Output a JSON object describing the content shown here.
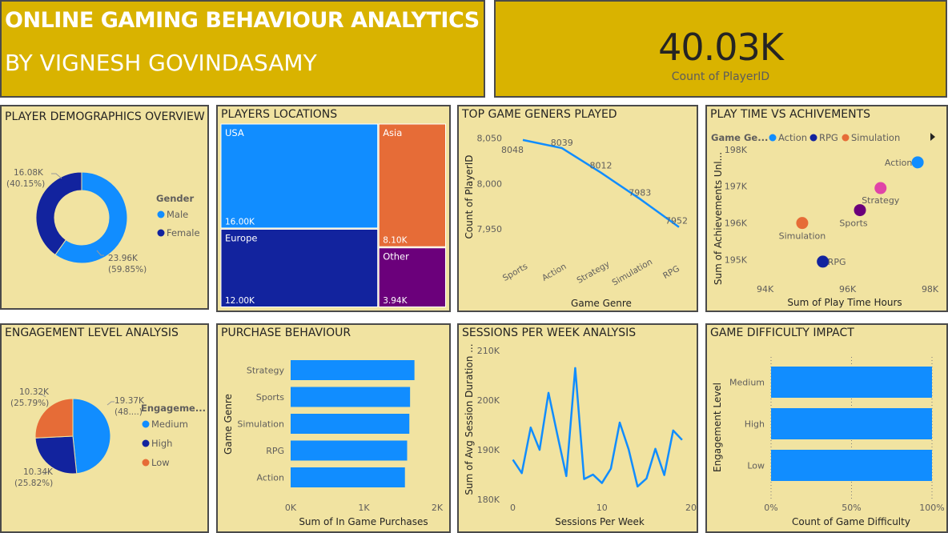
{
  "header": {
    "title": "ONLINE GAMING BEHAVIOUR ANALYTICS",
    "author": "BY VIGNESH GOVINDASAMY"
  },
  "kpi": {
    "value": "40.03K",
    "label": "Count of PlayerID"
  },
  "panels": {
    "demographics": "PLAYER DEMOGRAPHICS OVERVIEW",
    "locations": "PLAYERS LOCATIONS",
    "genres": "TOP GAME GENERS PLAYED",
    "playtime": "PLAY TIME VS ACHIVEMENTS",
    "engagement": "ENGAGEMENT LEVEL ANALYSIS",
    "purchase": "PURCHASE BEHAVIOUR",
    "sessions": "SESSIONS PER WEEK ANALYSIS",
    "difficulty": "GAME DIFFICULTY IMPACT"
  },
  "colors": {
    "light_blue": "#118dff",
    "dark_blue": "#12239e",
    "orange": "#e66c37",
    "purple": "#6b007b",
    "pink": "#e044a7",
    "plum": "#744ec2",
    "panel_bg": "#f1e3a1",
    "banner_bg": "#d9b300"
  },
  "chart_data": [
    {
      "id": "demographics",
      "type": "donut",
      "legend_title": "Gender",
      "legend": [
        "Male",
        "Female"
      ],
      "slices": [
        {
          "name": "Male",
          "value": 23.96,
          "label": "23.96K",
          "pct": "(59.85%)",
          "color": "#118dff"
        },
        {
          "name": "Female",
          "value": 16.08,
          "label": "16.08K",
          "pct": "(40.15%)",
          "color": "#12239e"
        }
      ]
    },
    {
      "id": "locations",
      "type": "treemap",
      "items": [
        {
          "name": "USA",
          "value": 16.0,
          "label": "16.00K",
          "color": "#118dff"
        },
        {
          "name": "Europe",
          "value": 12.0,
          "label": "12.00K",
          "color": "#12239e"
        },
        {
          "name": "Asia",
          "value": 8.1,
          "label": "8.10K",
          "color": "#e66c37"
        },
        {
          "name": "Other",
          "value": 3.94,
          "label": "3.94K",
          "color": "#6b007b"
        }
      ]
    },
    {
      "id": "genres",
      "type": "line",
      "categories": [
        "Sports",
        "Action",
        "Strategy",
        "Simulation",
        "RPG"
      ],
      "values": [
        8048,
        8039,
        8012,
        7983,
        7952
      ],
      "ylim": [
        7935,
        8062
      ],
      "yticks": [
        7950,
        8000,
        8050
      ],
      "ytick_labels": [
        "7,950",
        "8,000",
        "8,050"
      ],
      "xlabel": "Game Genre",
      "ylabel": "Count of PlayerID"
    },
    {
      "id": "playtime",
      "type": "scatter",
      "legend_title": "Game Ge...",
      "legend": [
        {
          "name": "Action",
          "color": "#118dff"
        },
        {
          "name": "RPG",
          "color": "#12239e"
        },
        {
          "name": "Simulation",
          "color": "#e66c37"
        }
      ],
      "points": [
        {
          "name": "Action",
          "x": 97.7,
          "y": 197.65,
          "color": "#118dff"
        },
        {
          "name": "Strategy",
          "x": 96.8,
          "y": 196.95,
          "color": "#e044a7"
        },
        {
          "name": "Sports",
          "x": 96.3,
          "y": 196.35,
          "color": "#6b007b"
        },
        {
          "name": "Simulation",
          "x": 94.9,
          "y": 196.0,
          "color": "#e66c37"
        },
        {
          "name": "RPG",
          "x": 95.4,
          "y": 194.95,
          "color": "#12239e"
        }
      ],
      "xlim": [
        93.6,
        98.3
      ],
      "ylim": [
        194.6,
        198.3
      ],
      "xticks": [
        94,
        96,
        98
      ],
      "xtick_labels": [
        "94K",
        "96K",
        "98K"
      ],
      "yticks": [
        195,
        196,
        197,
        198
      ],
      "ytick_labels": [
        "195K",
        "196K",
        "197K",
        "198K"
      ],
      "xlabel": "Sum of Play Time Hours",
      "ylabel": "Sum of Achievements Unl..."
    },
    {
      "id": "engagement",
      "type": "pie",
      "legend_title": "Engageme...",
      "legend": [
        "Medium",
        "High",
        "Low"
      ],
      "slices": [
        {
          "name": "Medium",
          "value": 19.37,
          "label": "19.37K",
          "pct": "(48....)",
          "color": "#118dff"
        },
        {
          "name": "High",
          "value": 10.34,
          "label": "10.34K",
          "pct": "(25.82%)",
          "color": "#12239e"
        },
        {
          "name": "Low",
          "value": 10.32,
          "label": "10.32K",
          "pct": "(25.79%)",
          "color": "#e66c37"
        }
      ]
    },
    {
      "id": "purchase",
      "type": "bar",
      "orientation": "horizontal",
      "categories": [
        "Strategy",
        "Sports",
        "Simulation",
        "RPG",
        "Action"
      ],
      "values": [
        1690,
        1630,
        1620,
        1590,
        1560
      ],
      "xlim": [
        0,
        2000
      ],
      "xticks": [
        0,
        1000,
        2000
      ],
      "xtick_labels": [
        "0K",
        "1K",
        "2K"
      ],
      "xlabel": "Sum of In Game Purchases",
      "ylabel": "Game Genre"
    },
    {
      "id": "sessions",
      "type": "line",
      "x": [
        0,
        1,
        2,
        3,
        4,
        5,
        6,
        7,
        8,
        9,
        10,
        11,
        12,
        13,
        14,
        15,
        16,
        17,
        18,
        19
      ],
      "values": [
        188,
        185.3,
        194.5,
        190,
        201.5,
        193,
        184.7,
        206.5,
        184.1,
        185,
        183.3,
        186.2,
        195.5,
        190.1,
        182.6,
        184.2,
        190.2,
        184.9,
        193.9,
        192
      ],
      "xlim": [
        -0.5,
        20
      ],
      "ylim": [
        180,
        211
      ],
      "xticks": [
        0,
        10,
        20
      ],
      "xtick_labels": [
        "0",
        "10",
        "20"
      ],
      "yticks": [
        180,
        190,
        200,
        210
      ],
      "ytick_labels": [
        "180K",
        "190K",
        "200K",
        "210K"
      ],
      "xlabel": "Sessions Per Week",
      "ylabel": "Sum of Avg Session Duration ..."
    },
    {
      "id": "difficulty",
      "type": "bar",
      "orientation": "horizontal",
      "stacked_pct": true,
      "categories": [
        "Medium",
        "High",
        "Low"
      ],
      "values": [
        100,
        100,
        100
      ],
      "xlim": [
        0,
        100
      ],
      "xticks": [
        0,
        50,
        100
      ],
      "xtick_labels": [
        "0%",
        "50%",
        "100%"
      ],
      "xlabel": "Count of Game Difficulty",
      "ylabel": "Engagement Level"
    }
  ]
}
